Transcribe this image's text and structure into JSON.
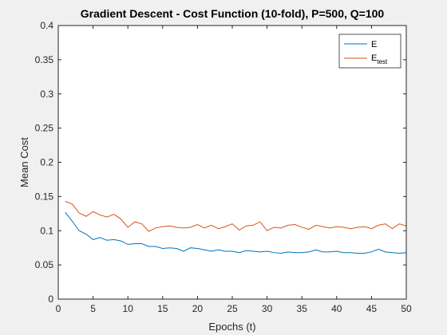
{
  "chart_data": {
    "type": "line",
    "title": "Gradient Descent - Cost Function (10-fold), P=500, Q=100",
    "xlabel": "Epochs (t)",
    "ylabel": "Mean Cost",
    "xlim": [
      0,
      50
    ],
    "ylim": [
      0,
      0.4
    ],
    "xticks": [
      0,
      5,
      10,
      15,
      20,
      25,
      30,
      35,
      40,
      45,
      50
    ],
    "yticks": [
      0,
      0.05,
      0.1,
      0.15,
      0.2,
      0.25,
      0.3,
      0.35,
      0.4
    ],
    "xtick_labels": [
      "0",
      "5",
      "10",
      "15",
      "20",
      "25",
      "30",
      "35",
      "40",
      "45",
      "50"
    ],
    "ytick_labels": [
      "0",
      "0.05",
      "0.1",
      "0.15",
      "0.2",
      "0.25",
      "0.3",
      "0.35",
      "0.4"
    ],
    "grid": false,
    "legend_position": "top-right",
    "x": [
      1,
      2,
      3,
      4,
      5,
      6,
      7,
      8,
      9,
      10,
      11,
      12,
      13,
      14,
      15,
      16,
      17,
      18,
      19,
      20,
      21,
      22,
      23,
      24,
      25,
      26,
      27,
      28,
      29,
      30,
      31,
      32,
      33,
      34,
      35,
      36,
      37,
      38,
      39,
      40,
      41,
      42,
      43,
      44,
      45,
      46,
      47,
      48,
      49,
      50
    ],
    "series": [
      {
        "name": "E",
        "legend_main": "E",
        "legend_sub": "",
        "color": "#0072BD",
        "values": [
          0.127,
          0.114,
          0.1,
          0.095,
          0.087,
          0.09,
          0.086,
          0.087,
          0.085,
          0.08,
          0.081,
          0.081,
          0.077,
          0.077,
          0.074,
          0.075,
          0.074,
          0.07,
          0.075,
          0.074,
          0.072,
          0.07,
          0.072,
          0.07,
          0.07,
          0.068,
          0.071,
          0.07,
          0.069,
          0.07,
          0.068,
          0.067,
          0.069,
          0.068,
          0.068,
          0.069,
          0.072,
          0.069,
          0.069,
          0.07,
          0.068,
          0.068,
          0.067,
          0.067,
          0.069,
          0.073,
          0.069,
          0.068,
          0.067,
          0.068
        ]
      },
      {
        "name": "E_test",
        "legend_main": "E",
        "legend_sub": "test",
        "color": "#D95319",
        "values": [
          0.143,
          0.139,
          0.126,
          0.121,
          0.128,
          0.123,
          0.12,
          0.124,
          0.117,
          0.105,
          0.113,
          0.11,
          0.099,
          0.104,
          0.106,
          0.107,
          0.105,
          0.104,
          0.105,
          0.109,
          0.104,
          0.108,
          0.103,
          0.106,
          0.11,
          0.101,
          0.107,
          0.108,
          0.113,
          0.1,
          0.105,
          0.104,
          0.108,
          0.109,
          0.105,
          0.102,
          0.108,
          0.106,
          0.104,
          0.106,
          0.105,
          0.103,
          0.105,
          0.106,
          0.103,
          0.108,
          0.11,
          0.103,
          0.11,
          0.107
        ]
      }
    ]
  }
}
